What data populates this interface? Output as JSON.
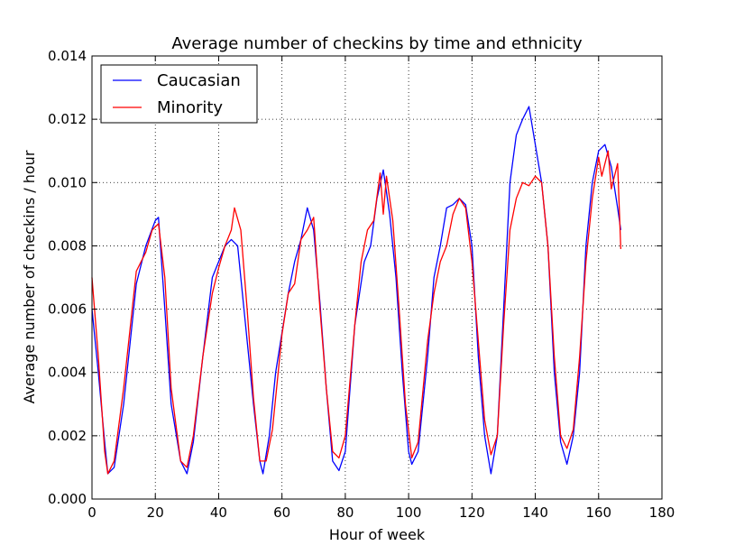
{
  "chart_data": {
    "type": "line",
    "title": "Average number of checkins by time and ethnicity",
    "xlabel": "Hour of week",
    "ylabel": "Average number of checkins / hour",
    "xlim": [
      0,
      180
    ],
    "ylim": [
      0,
      0.014
    ],
    "x_ticks": [
      "0",
      "20",
      "40",
      "60",
      "80",
      "100",
      "120",
      "140",
      "160",
      "180"
    ],
    "y_ticks": [
      "0.000",
      "0.002",
      "0.004",
      "0.006",
      "0.008",
      "0.010",
      "0.012",
      "0.014"
    ],
    "grid": true,
    "legend_position": "top-left",
    "series": [
      {
        "name": "Caucasian",
        "color": "#0000ff",
        "keypoints": [
          [
            0,
            0.006
          ],
          [
            2,
            0.004
          ],
          [
            4,
            0.0018
          ],
          [
            5,
            0.0008
          ],
          [
            7,
            0.001
          ],
          [
            10,
            0.003
          ],
          [
            14,
            0.0068
          ],
          [
            17,
            0.008
          ],
          [
            20,
            0.0088
          ],
          [
            21,
            0.0089
          ],
          [
            23,
            0.006
          ],
          [
            25,
            0.003
          ],
          [
            28,
            0.0012
          ],
          [
            30,
            0.0008
          ],
          [
            32,
            0.0018
          ],
          [
            35,
            0.0045
          ],
          [
            38,
            0.007
          ],
          [
            40,
            0.0075
          ],
          [
            42,
            0.008
          ],
          [
            44,
            0.0082
          ],
          [
            46,
            0.008
          ],
          [
            48,
            0.006
          ],
          [
            51,
            0.003
          ],
          [
            53,
            0.0012
          ],
          [
            54,
            0.0008
          ],
          [
            56,
            0.002
          ],
          [
            58,
            0.004
          ],
          [
            62,
            0.0065
          ],
          [
            64,
            0.0075
          ],
          [
            66,
            0.0082
          ],
          [
            68,
            0.0092
          ],
          [
            70,
            0.0085
          ],
          [
            72,
            0.0062
          ],
          [
            74,
            0.0035
          ],
          [
            76,
            0.0012
          ],
          [
            78,
            0.0009
          ],
          [
            80,
            0.0015
          ],
          [
            83,
            0.0055
          ],
          [
            86,
            0.0075
          ],
          [
            88,
            0.008
          ],
          [
            90,
            0.0095
          ],
          [
            92,
            0.0104
          ],
          [
            94,
            0.009
          ],
          [
            96,
            0.007
          ],
          [
            98,
            0.004
          ],
          [
            100,
            0.0015
          ],
          [
            101,
            0.0011
          ],
          [
            103,
            0.0015
          ],
          [
            106,
            0.0045
          ],
          [
            108,
            0.007
          ],
          [
            110,
            0.008
          ],
          [
            112,
            0.0092
          ],
          [
            114,
            0.0093
          ],
          [
            116,
            0.0095
          ],
          [
            118,
            0.0093
          ],
          [
            120,
            0.008
          ],
          [
            122,
            0.0045
          ],
          [
            124,
            0.002
          ],
          [
            126,
            0.0008
          ],
          [
            128,
            0.002
          ],
          [
            130,
            0.006
          ],
          [
            132,
            0.01
          ],
          [
            134,
            0.0115
          ],
          [
            136,
            0.012
          ],
          [
            138,
            0.0124
          ],
          [
            140,
            0.0112
          ],
          [
            142,
            0.01
          ],
          [
            144,
            0.008
          ],
          [
            146,
            0.004
          ],
          [
            148,
            0.0018
          ],
          [
            150,
            0.0011
          ],
          [
            152,
            0.002
          ],
          [
            154,
            0.004
          ],
          [
            156,
            0.008
          ],
          [
            158,
            0.01
          ],
          [
            160,
            0.011
          ],
          [
            162,
            0.0112
          ],
          [
            164,
            0.0105
          ],
          [
            166,
            0.0092
          ],
          [
            167,
            0.0085
          ]
        ]
      },
      {
        "name": "Minority",
        "color": "#ff0000",
        "keypoints": [
          [
            0,
            0.007
          ],
          [
            2,
            0.0045
          ],
          [
            4,
            0.0015
          ],
          [
            5,
            0.0008
          ],
          [
            7,
            0.0012
          ],
          [
            10,
            0.0035
          ],
          [
            14,
            0.0072
          ],
          [
            17,
            0.0078
          ],
          [
            19,
            0.0085
          ],
          [
            21,
            0.0087
          ],
          [
            23,
            0.007
          ],
          [
            25,
            0.0035
          ],
          [
            28,
            0.0012
          ],
          [
            30,
            0.001
          ],
          [
            32,
            0.002
          ],
          [
            35,
            0.0045
          ],
          [
            38,
            0.0065
          ],
          [
            40,
            0.0073
          ],
          [
            42,
            0.008
          ],
          [
            44,
            0.0085
          ],
          [
            45,
            0.0092
          ],
          [
            47,
            0.0085
          ],
          [
            49,
            0.006
          ],
          [
            51,
            0.0032
          ],
          [
            53,
            0.0012
          ],
          [
            55,
            0.0012
          ],
          [
            57,
            0.0022
          ],
          [
            60,
            0.0052
          ],
          [
            62,
            0.0065
          ],
          [
            64,
            0.0068
          ],
          [
            66,
            0.0082
          ],
          [
            68,
            0.0085
          ],
          [
            70,
            0.0089
          ],
          [
            72,
            0.006
          ],
          [
            74,
            0.0035
          ],
          [
            76,
            0.0015
          ],
          [
            78,
            0.0013
          ],
          [
            80,
            0.002
          ],
          [
            83,
            0.0055
          ],
          [
            85,
            0.0075
          ],
          [
            87,
            0.0085
          ],
          [
            89,
            0.0088
          ],
          [
            91,
            0.0103
          ],
          [
            92,
            0.009
          ],
          [
            93,
            0.0102
          ],
          [
            95,
            0.0088
          ],
          [
            97,
            0.006
          ],
          [
            99,
            0.003
          ],
          [
            101,
            0.0013
          ],
          [
            103,
            0.0018
          ],
          [
            106,
            0.005
          ],
          [
            108,
            0.0065
          ],
          [
            110,
            0.0075
          ],
          [
            112,
            0.008
          ],
          [
            114,
            0.009
          ],
          [
            116,
            0.0095
          ],
          [
            118,
            0.0092
          ],
          [
            120,
            0.0075
          ],
          [
            122,
            0.005
          ],
          [
            124,
            0.0025
          ],
          [
            126,
            0.0014
          ],
          [
            128,
            0.002
          ],
          [
            130,
            0.0055
          ],
          [
            132,
            0.0085
          ],
          [
            134,
            0.0095
          ],
          [
            136,
            0.01
          ],
          [
            138,
            0.0099
          ],
          [
            140,
            0.0102
          ],
          [
            142,
            0.01
          ],
          [
            144,
            0.008
          ],
          [
            146,
            0.0045
          ],
          [
            148,
            0.002
          ],
          [
            150,
            0.0016
          ],
          [
            152,
            0.0022
          ],
          [
            154,
            0.0045
          ],
          [
            156,
            0.0075
          ],
          [
            158,
            0.0095
          ],
          [
            160,
            0.0108
          ],
          [
            161,
            0.0102
          ],
          [
            163,
            0.011
          ],
          [
            164,
            0.0098
          ],
          [
            166,
            0.0106
          ],
          [
            167,
            0.0079
          ]
        ]
      }
    ]
  }
}
